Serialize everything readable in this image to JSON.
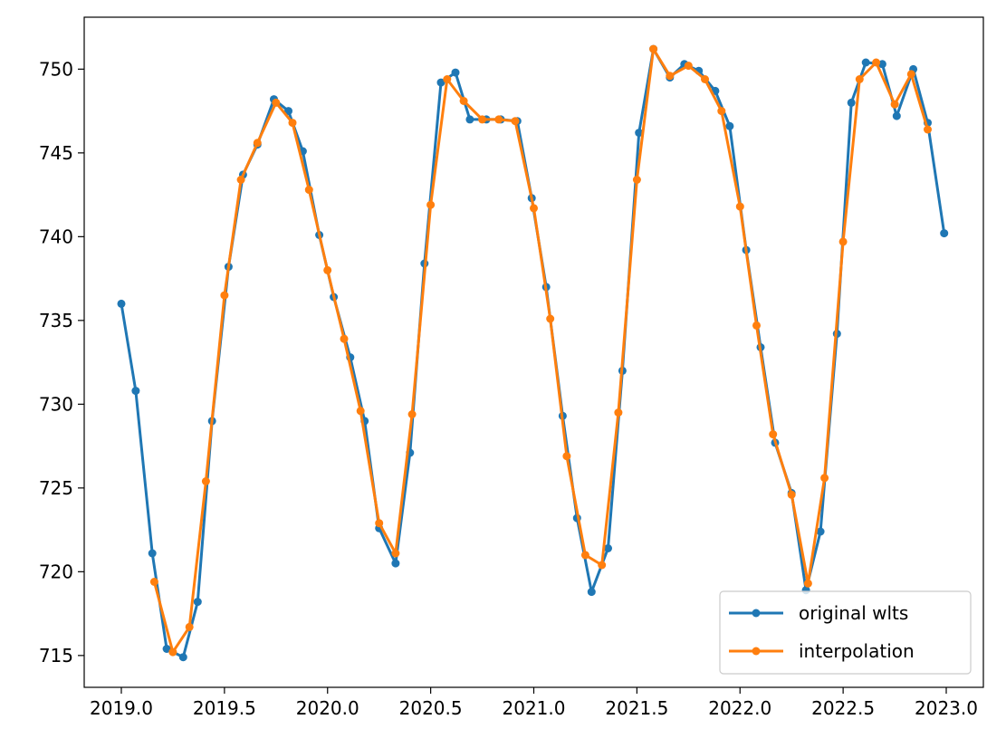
{
  "chart_data": {
    "type": "line",
    "title": "",
    "xlabel": "",
    "ylabel": "",
    "xlim": [
      2018.82,
      2023.18
    ],
    "ylim": [
      713.1,
      753.1
    ],
    "x_ticks": [
      2019.0,
      2019.5,
      2020.0,
      2020.5,
      2021.0,
      2021.5,
      2022.0,
      2022.5,
      2023.0
    ],
    "x_tick_labels": [
      "2019.0",
      "2019.5",
      "2020.0",
      "2020.5",
      "2021.0",
      "2021.5",
      "2022.0",
      "2022.5",
      "2023.0"
    ],
    "y_ticks": [
      715,
      720,
      725,
      730,
      735,
      740,
      745,
      750
    ],
    "y_tick_labels": [
      "715",
      "720",
      "725",
      "730",
      "735",
      "740",
      "745",
      "750"
    ],
    "grid": false,
    "legend_position": "bottom-right",
    "series": [
      {
        "name": "original wlts",
        "color": "#1f77b4",
        "x": [
          2019.0,
          2019.07,
          2019.15,
          2019.22,
          2019.3,
          2019.37,
          2019.44,
          2019.52,
          2019.59,
          2019.66,
          2019.74,
          2019.81,
          2019.88,
          2019.96,
          2020.03,
          2020.11,
          2020.18,
          2020.25,
          2020.33,
          2020.4,
          2020.47,
          2020.55,
          2020.62,
          2020.69,
          2020.77,
          2020.84,
          2020.92,
          2020.99,
          2021.06,
          2021.14,
          2021.21,
          2021.28,
          2021.36,
          2021.43,
          2021.51,
          2021.58,
          2021.66,
          2021.73,
          2021.8,
          2021.88,
          2021.95,
          2022.03,
          2022.1,
          2022.17,
          2022.25,
          2022.32,
          2022.39,
          2022.47,
          2022.54,
          2022.61,
          2022.69,
          2022.76,
          2022.84,
          2022.91,
          2022.99
        ],
        "y": [
          736.0,
          730.8,
          721.1,
          715.4,
          714.9,
          718.2,
          729.0,
          738.2,
          743.7,
          745.5,
          748.2,
          747.5,
          745.1,
          740.1,
          736.4,
          732.8,
          729.0,
          722.6,
          720.5,
          727.1,
          738.4,
          749.2,
          749.8,
          747.0,
          747.0,
          747.0,
          746.9,
          742.3,
          737.0,
          729.3,
          723.2,
          718.8,
          721.4,
          732.0,
          746.2,
          751.2,
          749.5,
          750.3,
          749.9,
          748.7,
          746.6,
          739.2,
          733.4,
          727.7,
          724.7,
          718.9,
          722.4,
          734.2,
          748.0,
          750.4,
          750.3,
          747.2,
          750.0,
          746.8,
          740.2
        ]
      },
      {
        "name": "interpolation",
        "color": "#ff7f0e",
        "x": [
          2019.16,
          2019.25,
          2019.33,
          2019.41,
          2019.5,
          2019.58,
          2019.66,
          2019.75,
          2019.83,
          2019.91,
          2020.0,
          2020.08,
          2020.16,
          2020.25,
          2020.33,
          2020.41,
          2020.5,
          2020.58,
          2020.66,
          2020.75,
          2020.83,
          2020.91,
          2021.0,
          2021.08,
          2021.16,
          2021.25,
          2021.33,
          2021.41,
          2021.5,
          2021.58,
          2021.66,
          2021.75,
          2021.83,
          2021.91,
          2022.0,
          2022.08,
          2022.16,
          2022.25,
          2022.33,
          2022.41,
          2022.5,
          2022.58,
          2022.66,
          2022.75,
          2022.83,
          2022.91
        ],
        "y": [
          719.4,
          715.2,
          716.7,
          725.4,
          736.5,
          743.4,
          745.6,
          748.0,
          746.8,
          742.8,
          738.0,
          733.9,
          729.6,
          722.9,
          721.1,
          729.4,
          741.9,
          749.4,
          748.1,
          747.0,
          747.0,
          746.9,
          741.7,
          735.1,
          726.9,
          721.0,
          720.4,
          729.5,
          743.4,
          751.2,
          749.6,
          750.2,
          749.4,
          747.5,
          741.8,
          734.7,
          728.2,
          724.6,
          719.3,
          725.6,
          739.7,
          749.4,
          750.4,
          747.9,
          749.7,
          746.4
        ]
      }
    ]
  }
}
